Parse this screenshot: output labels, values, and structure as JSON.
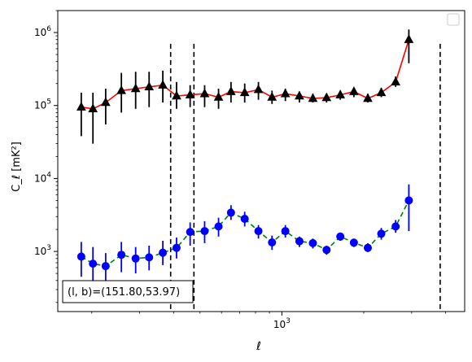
{
  "chart_data": {
    "type": "scatter",
    "x_scale": "log",
    "y_scale": "log",
    "xlim": [
      150,
      4700
    ],
    "ylim": [
      150,
      2000000
    ],
    "xlabel": "ℓ",
    "ylabel": "C_ℓ  [mK²]",
    "y_ticks": [
      {
        "value": 1000,
        "label": "10",
        "exp": "3"
      },
      {
        "value": 10000,
        "label": "10",
        "exp": "4"
      },
      {
        "value": 100000,
        "label": "10",
        "exp": "5"
      },
      {
        "value": 1000000,
        "label": "10",
        "exp": "6"
      }
    ],
    "x_ticks": [
      {
        "value": 1000,
        "label": "10",
        "exp": "3"
      }
    ],
    "vlines": [
      390,
      475,
      3820
    ],
    "annotation": "(l, b)=(151.80,53.97)",
    "legend": "top-right (empty)",
    "series": [
      {
        "marker": "triangle",
        "marker_color": "#000000",
        "line_color": "#ff0000",
        "line_style": "solid",
        "errorbar_color": "#000000",
        "points": [
          {
            "x": 183,
            "y": 95000,
            "lo": 38000,
            "hi": 150000
          },
          {
            "x": 202,
            "y": 90000,
            "lo": 30000,
            "hi": 150000
          },
          {
            "x": 225,
            "y": 110000,
            "lo": 55000,
            "hi": 170000
          },
          {
            "x": 257,
            "y": 160000,
            "lo": 80000,
            "hi": 280000
          },
          {
            "x": 290,
            "y": 170000,
            "lo": 90000,
            "hi": 290000
          },
          {
            "x": 325,
            "y": 180000,
            "lo": 95000,
            "hi": 290000
          },
          {
            "x": 365,
            "y": 190000,
            "lo": 110000,
            "hi": 300000
          },
          {
            "x": 410,
            "y": 135000,
            "lo": 90000,
            "hi": 210000
          },
          {
            "x": 460,
            "y": 140000,
            "lo": 95000,
            "hi": 190000
          },
          {
            "x": 520,
            "y": 145000,
            "lo": 95000,
            "hi": 190000
          },
          {
            "x": 585,
            "y": 130000,
            "lo": 90000,
            "hi": 170000
          },
          {
            "x": 650,
            "y": 155000,
            "lo": 110000,
            "hi": 210000
          },
          {
            "x": 730,
            "y": 150000,
            "lo": 110000,
            "hi": 200000
          },
          {
            "x": 820,
            "y": 165000,
            "lo": 120000,
            "hi": 210000
          },
          {
            "x": 920,
            "y": 130000,
            "lo": 105000,
            "hi": 160000
          },
          {
            "x": 1030,
            "y": 145000,
            "lo": 115000,
            "hi": 170000
          },
          {
            "x": 1160,
            "y": 135000,
            "lo": 110000,
            "hi": 155000
          },
          {
            "x": 1300,
            "y": 125000,
            "lo": 110000,
            "hi": 145000
          },
          {
            "x": 1460,
            "y": 128000,
            "lo": 110000,
            "hi": 145000
          },
          {
            "x": 1640,
            "y": 140000,
            "lo": 120000,
            "hi": 155000
          },
          {
            "x": 1840,
            "y": 155000,
            "lo": 130000,
            "hi": 170000
          },
          {
            "x": 2070,
            "y": 125000,
            "lo": 110000,
            "hi": 145000
          },
          {
            "x": 2320,
            "y": 150000,
            "lo": 130000,
            "hi": 175000
          },
          {
            "x": 2620,
            "y": 210000,
            "lo": 180000,
            "hi": 250000
          },
          {
            "x": 2930,
            "y": 800000,
            "lo": 380000,
            "hi": 1100000
          }
        ]
      },
      {
        "marker": "circle",
        "marker_color": "#0000ff",
        "line_color": "#008000",
        "line_style": "dashed",
        "errorbar_color": "#0000ff",
        "points": [
          {
            "x": 183,
            "y": 850,
            "lo": 450,
            "hi": 1350
          },
          {
            "x": 202,
            "y": 680,
            "lo": 350,
            "hi": 1150
          },
          {
            "x": 225,
            "y": 630,
            "lo": 400,
            "hi": 950
          },
          {
            "x": 257,
            "y": 900,
            "lo": 520,
            "hi": 1350
          },
          {
            "x": 290,
            "y": 800,
            "lo": 500,
            "hi": 1150
          },
          {
            "x": 325,
            "y": 830,
            "lo": 550,
            "hi": 1200
          },
          {
            "x": 365,
            "y": 960,
            "lo": 650,
            "hi": 1400
          },
          {
            "x": 410,
            "y": 1120,
            "lo": 800,
            "hi": 1550
          },
          {
            "x": 460,
            "y": 1850,
            "lo": 1200,
            "hi": 2500
          },
          {
            "x": 520,
            "y": 1900,
            "lo": 1300,
            "hi": 2600
          },
          {
            "x": 585,
            "y": 2200,
            "lo": 1600,
            "hi": 2900
          },
          {
            "x": 650,
            "y": 3400,
            "lo": 2700,
            "hi": 4300
          },
          {
            "x": 730,
            "y": 2800,
            "lo": 2200,
            "hi": 3500
          },
          {
            "x": 820,
            "y": 1900,
            "lo": 1500,
            "hi": 2300
          },
          {
            "x": 920,
            "y": 1330,
            "lo": 1050,
            "hi": 1650
          },
          {
            "x": 1030,
            "y": 1900,
            "lo": 1550,
            "hi": 2300
          },
          {
            "x": 1160,
            "y": 1380,
            "lo": 1150,
            "hi": 1600
          },
          {
            "x": 1300,
            "y": 1300,
            "lo": 1100,
            "hi": 1500
          },
          {
            "x": 1460,
            "y": 1050,
            "lo": 900,
            "hi": 1200
          },
          {
            "x": 1640,
            "y": 1600,
            "lo": 1400,
            "hi": 1800
          },
          {
            "x": 1840,
            "y": 1320,
            "lo": 1150,
            "hi": 1500
          },
          {
            "x": 2070,
            "y": 1120,
            "lo": 980,
            "hi": 1300
          },
          {
            "x": 2320,
            "y": 1750,
            "lo": 1450,
            "hi": 2100
          },
          {
            "x": 2620,
            "y": 2200,
            "lo": 1800,
            "hi": 2700
          },
          {
            "x": 2930,
            "y": 5000,
            "lo": 1900,
            "hi": 8300
          }
        ]
      }
    ]
  }
}
